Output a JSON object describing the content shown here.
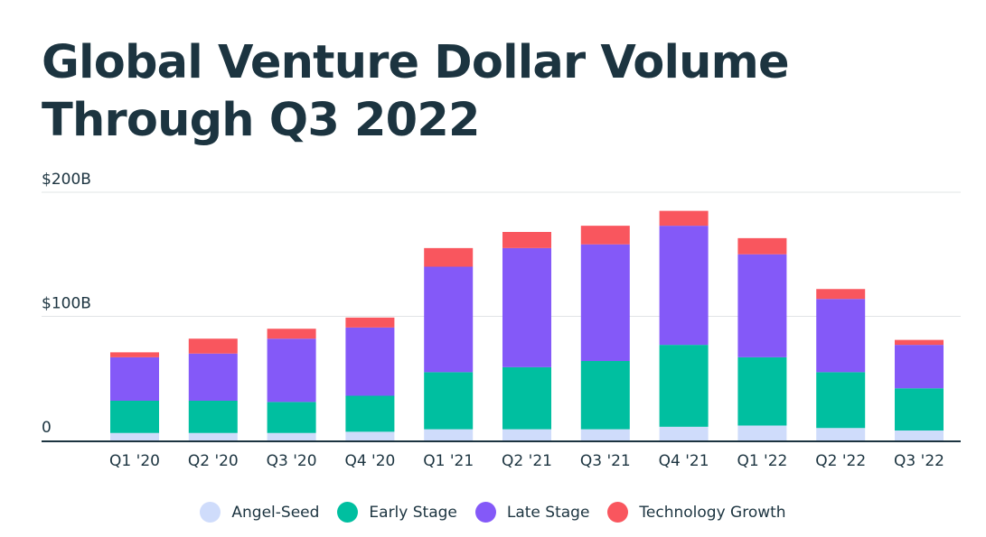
{
  "chart_data": {
    "type": "bar",
    "stacked": true,
    "title": "Global Venture Dollar Volume Through Q3 2022",
    "categories": [
      "Q1 '20",
      "Q2 '20",
      "Q3 '20",
      "Q4 '20",
      "Q1 '21",
      "Q2 '21",
      "Q3 '21",
      "Q4 '21",
      "Q1 '22",
      "Q2 '22",
      "Q3 '22"
    ],
    "y_ticks": [
      {
        "value": 0,
        "label": "0"
      },
      {
        "value": 100,
        "label": "$100B"
      },
      {
        "value": 200,
        "label": "$200B"
      }
    ],
    "ylim": [
      0,
      200
    ],
    "grid": true,
    "legend_position": "bottom",
    "series": [
      {
        "name": "Angel-Seed",
        "color": "#cfdcfb",
        "values": [
          6,
          6,
          6,
          7,
          9,
          9,
          9,
          11,
          12,
          10,
          8
        ]
      },
      {
        "name": "Early Stage",
        "color": "#00bfa0",
        "values": [
          26,
          26,
          25,
          29,
          46,
          50,
          55,
          66,
          55,
          45,
          34
        ]
      },
      {
        "name": "Late Stage",
        "color": "#8459f8",
        "values": [
          35,
          38,
          51,
          55,
          85,
          96,
          94,
          96,
          83,
          59,
          35
        ]
      },
      {
        "name": "Technology Growth",
        "color": "#f9565e",
        "values": [
          4,
          12,
          8,
          8,
          15,
          13,
          15,
          12,
          13,
          8,
          4
        ]
      }
    ]
  }
}
